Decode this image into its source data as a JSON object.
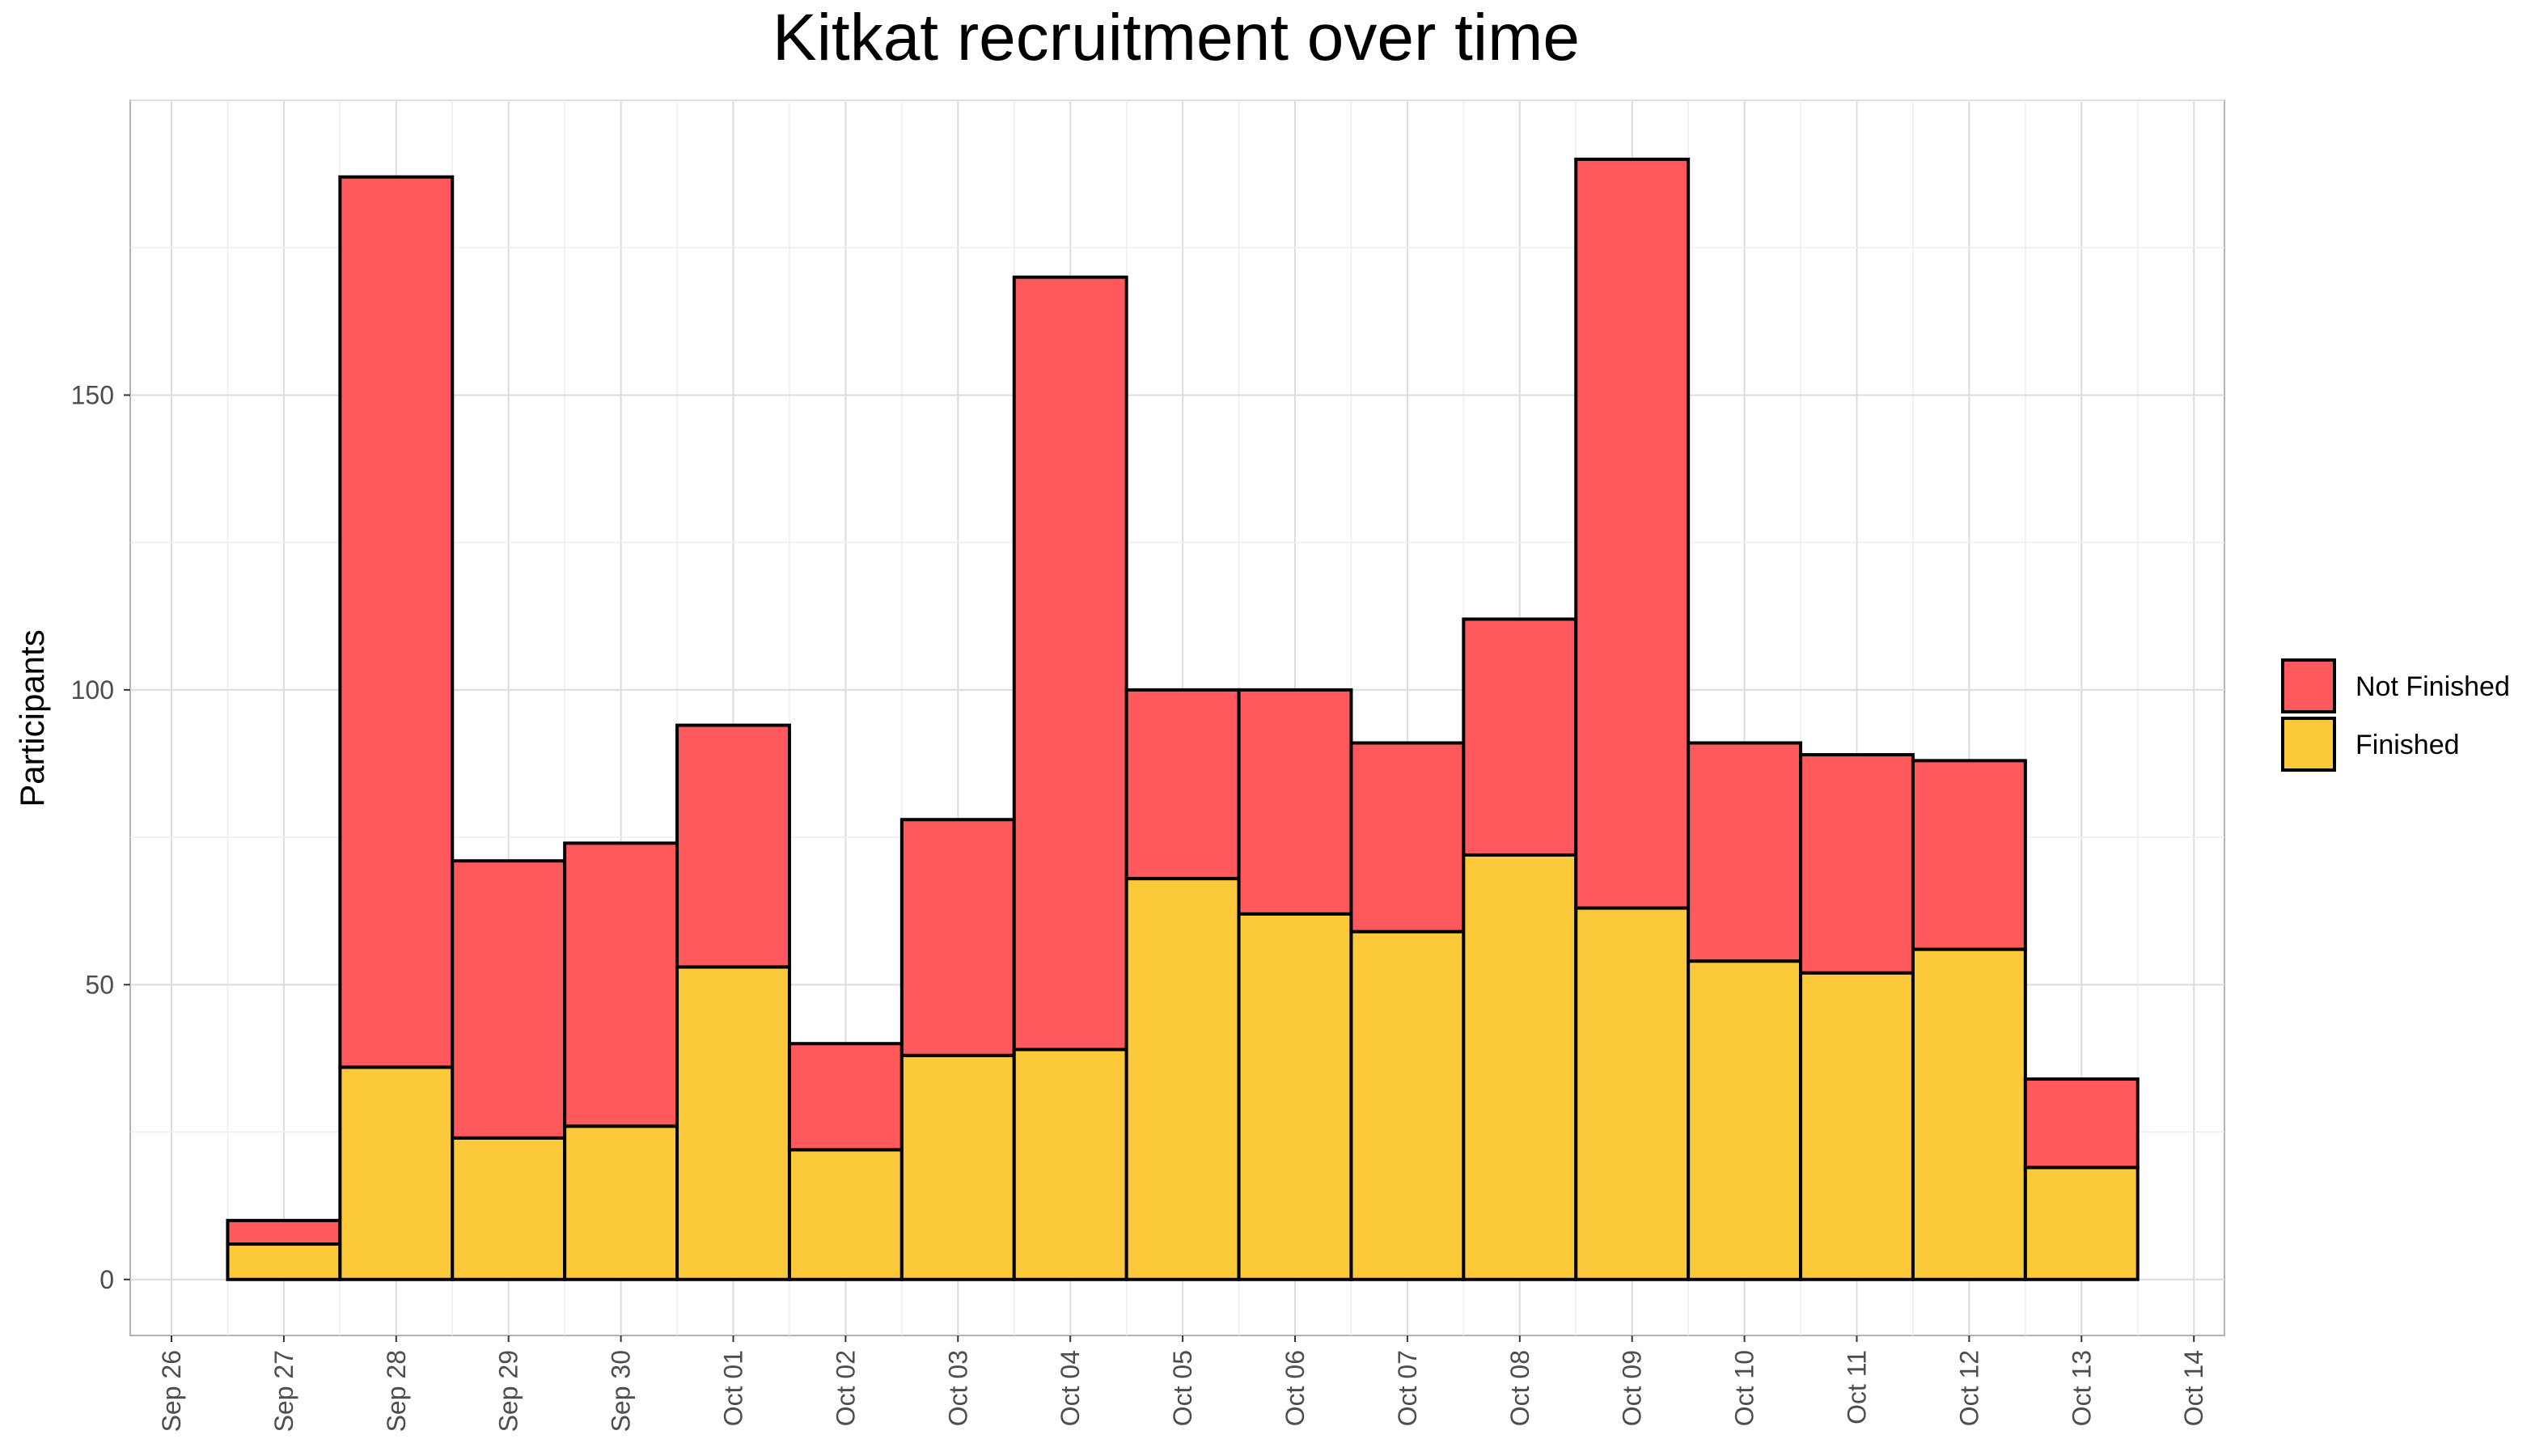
{
  "chart_data": {
    "type": "bar",
    "stacked": true,
    "title": "Kitkat recruitment over time",
    "xlabel": "",
    "ylabel": "Participants",
    "x_ticks": [
      "Sep 26",
      "Sep 27",
      "Sep 28",
      "Sep 29",
      "Sep 30",
      "Oct 01",
      "Oct 02",
      "Oct 03",
      "Oct 04",
      "Oct 05",
      "Oct 06",
      "Oct 07",
      "Oct 08",
      "Oct 09",
      "Oct 10",
      "Oct 11",
      "Oct 12",
      "Oct 13",
      "Oct 14"
    ],
    "categories": [
      "Sep 27",
      "Sep 28",
      "Sep 29",
      "Sep 30",
      "Oct 01",
      "Oct 02",
      "Oct 03",
      "Oct 04",
      "Oct 05",
      "Oct 06",
      "Oct 07",
      "Oct 08",
      "Oct 09",
      "Oct 10",
      "Oct 11",
      "Oct 12",
      "Oct 13"
    ],
    "series": [
      {
        "name": "Finished",
        "color": "#fcc93b",
        "values": [
          6,
          36,
          24,
          26,
          53,
          22,
          38,
          39,
          68,
          62,
          59,
          72,
          63,
          54,
          52,
          56,
          19
        ]
      },
      {
        "name": "Not Finished",
        "color": "#ff585d",
        "values": [
          4,
          151,
          47,
          48,
          41,
          18,
          40,
          131,
          32,
          38,
          32,
          40,
          127,
          37,
          37,
          32,
          15
        ]
      }
    ],
    "y_ticks": [
      0,
      50,
      100,
      150
    ],
    "ylim": [
      -9.5,
      200
    ],
    "legend": {
      "position": "right",
      "order": [
        "Not Finished",
        "Finished"
      ]
    },
    "grid": true
  }
}
